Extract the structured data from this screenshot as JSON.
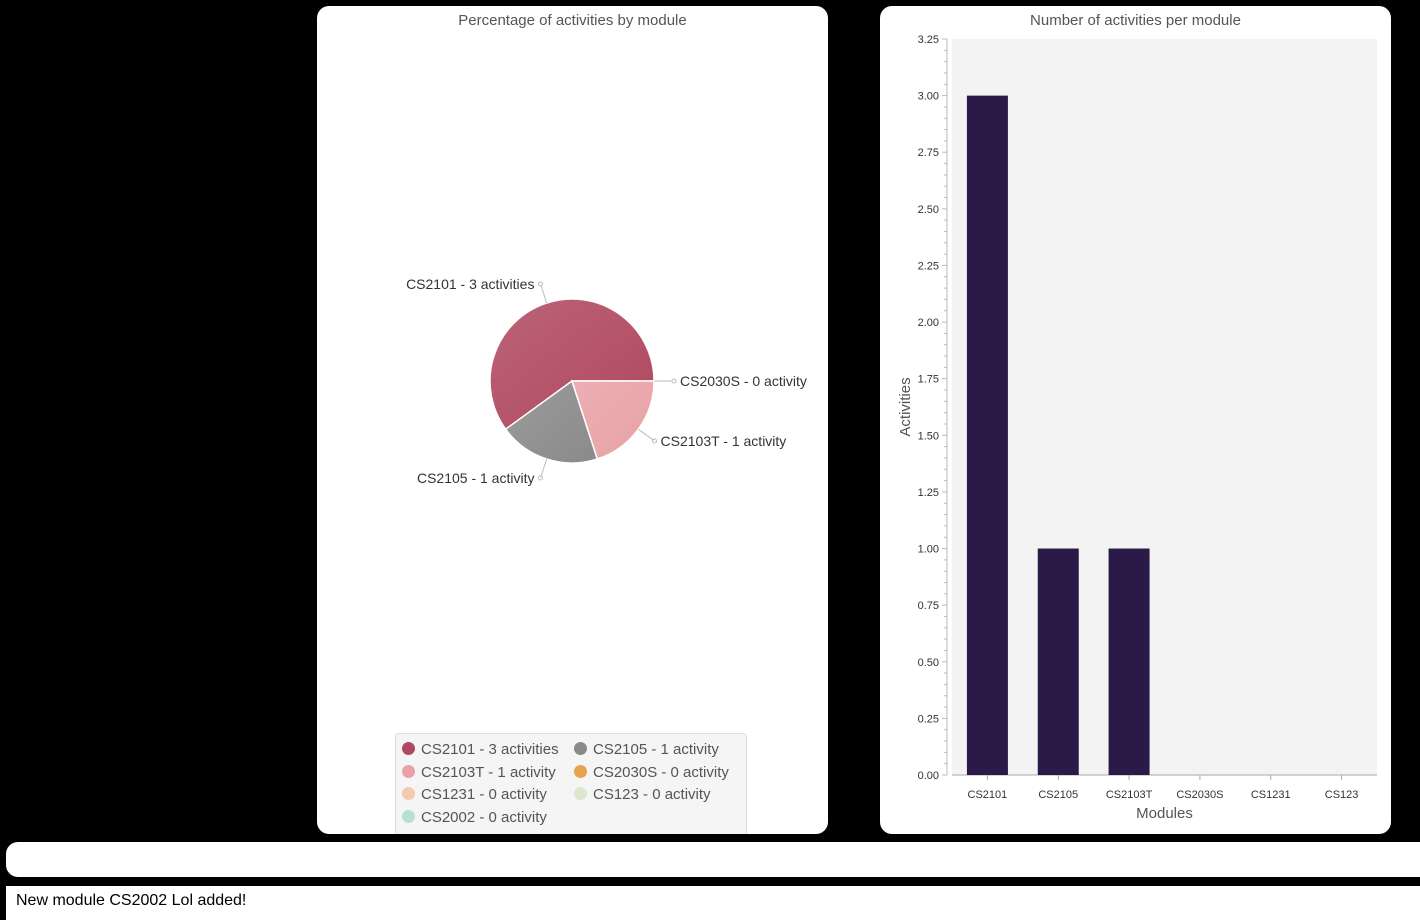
{
  "pie_title": "Percentage of activities by module",
  "bar_title": "Number of activities per module",
  "input": {
    "value": "",
    "placeholder": ""
  },
  "status_message": "New module CS2002 Lol added!",
  "colors": {
    "bar": "#2b1a48",
    "plot_bg": "#f3f3f3"
  },
  "chart_data": [
    {
      "type": "pie",
      "title": "Percentage of activities by module",
      "slices": [
        {
          "label": "CS2101 - 3 activities",
          "value": 3,
          "color": "#b0485f"
        },
        {
          "label": "CS2105 - 1 activity",
          "value": 1,
          "color": "#8a8a8a"
        },
        {
          "label": "CS2103T - 1 activity",
          "value": 1,
          "color": "#e8a1a6"
        },
        {
          "label": "CS2030S - 0 activity",
          "value": 0,
          "color": "#e6a34b"
        },
        {
          "label": "CS1231 - 0 activity",
          "value": 0,
          "color": "#f4c9b1"
        },
        {
          "label": "CS123 - 0 activity",
          "value": 0,
          "color": "#dde6cf"
        },
        {
          "label": "CS2002 - 0 activity",
          "value": 0,
          "color": "#b7e0d3"
        }
      ],
      "legend_position": "bottom"
    },
    {
      "type": "bar",
      "title": "Number of activities per module",
      "categories": [
        "CS2101",
        "CS2105",
        "CS2103T",
        "CS2030S",
        "CS1231",
        "CS123"
      ],
      "values": [
        3,
        1,
        1,
        0,
        0,
        0
      ],
      "xlabel": "Modules",
      "ylabel": "Activities",
      "ylim": [
        0,
        3.25
      ],
      "yticks": [
        "0.00",
        "0.25",
        "0.50",
        "0.75",
        "1.00",
        "1.25",
        "1.50",
        "1.75",
        "2.00",
        "2.25",
        "2.50",
        "2.75",
        "3.00",
        "3.25"
      ],
      "grid": false
    }
  ]
}
